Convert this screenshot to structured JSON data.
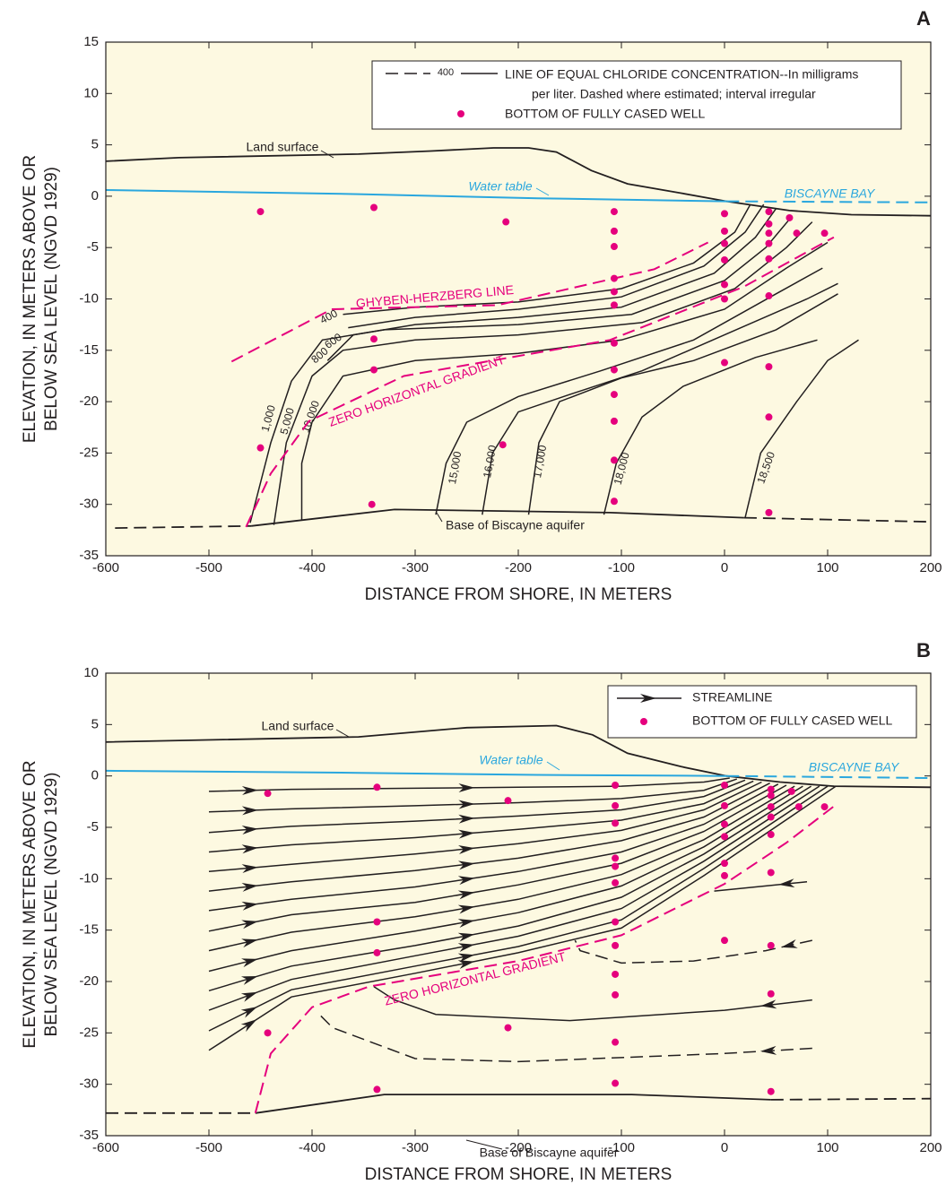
{
  "chart_data": [
    {
      "type": "line",
      "panel": "A",
      "facecolor": "#fdf9e1",
      "xlabel": "DISTANCE FROM SHORE, IN METERS",
      "ylabel": [
        "ELEVATION, IN METERS ABOVE OR",
        "BELOW SEA LEVEL (NGVD 1929)"
      ],
      "xlim": [
        -600,
        200
      ],
      "ylim": [
        -35,
        15
      ],
      "xticks": [
        -600,
        -500,
        -400,
        -300,
        -200,
        -100,
        0,
        100,
        200
      ],
      "yticks": [
        -35,
        -30,
        -25,
        -20,
        -15,
        -10,
        -5,
        0,
        5,
        10,
        15
      ],
      "legend": {
        "sample_level": 400,
        "contour_text": [
          "LINE OF EQUAL CHLORIDE CONCENTRATION--In milligrams",
          "per liter. Dashed where estimated; interval irregular"
        ],
        "well_text": "BOTTOM OF FULLY CASED WELL"
      },
      "series": [
        {
          "name": "Land surface",
          "color": "#231f20",
          "x": [
            -600,
            -529,
            -355,
            -285,
            -224,
            -190,
            -163,
            -129,
            -94,
            -42,
            2,
            63,
            123,
            200
          ],
          "y": [
            3.4,
            3.75,
            4.1,
            4.4,
            4.7,
            4.7,
            4.3,
            2.5,
            1.2,
            0.3,
            -0.5,
            -1.4,
            -1.8,
            -1.9
          ]
        },
        {
          "name": "Water table",
          "color": "#2aa7de",
          "x": [
            -600,
            -355,
            -181,
            2
          ],
          "y": [
            0.6,
            0.2,
            -0.2,
            -0.5
          ]
        },
        {
          "name": "BISCAYNE BAY",
          "color": "#2aa7de",
          "dashed": true,
          "x": [
            2,
            200
          ],
          "y": [
            -0.5,
            -0.6
          ]
        },
        {
          "color": "#231f20",
          "dashed": true,
          "x": [
            -591,
            -459
          ],
          "y": [
            -32.3,
            -32.1
          ]
        },
        {
          "name": "Base of Biscayne aquifer",
          "color": "#231f20",
          "x": [
            -459,
            -320,
            -111,
            19
          ],
          "y": [
            -32.1,
            -30.5,
            -30.8,
            -31.3
          ]
        },
        {
          "color": "#231f20",
          "dashed": true,
          "x": [
            19,
            200
          ],
          "y": [
            -31.3,
            -31.7
          ]
        },
        {
          "name": "GHYBEN-HERZBERG LINE",
          "color": "#e5007d",
          "dashed": true,
          "x": [
            -478,
            -381,
            -220,
            -68,
            -16
          ],
          "y": [
            -16.1,
            -11,
            -10.6,
            -7.1,
            -4.5
          ]
        },
        {
          "name": "ZERO HORIZONTAL GRADIENT",
          "color": "#e5007d",
          "dashed": true,
          "x": [
            -464,
            -440,
            -403,
            -311,
            -111,
            19,
            106
          ],
          "y": [
            -32.2,
            -27,
            -21.9,
            -17.5,
            -14,
            -8.8,
            -4
          ]
        }
      ],
      "contours": [
        {
          "level": 400,
          "x": [
            -370,
            -300,
            -200,
            -100,
            -30,
            10,
            25
          ],
          "y": [
            -11.5,
            -10.8,
            -10.3,
            -9,
            -6.5,
            -3.5,
            -0.8
          ]
        },
        {
          "level": 600,
          "x": [
            -365,
            -300,
            -200,
            -100,
            -20,
            20,
            38
          ],
          "y": [
            -12.8,
            -11.8,
            -11,
            -9.8,
            -6.8,
            -3.5,
            -0.8
          ]
        },
        {
          "level": 800,
          "x": [
            -385,
            -360,
            -300,
            -200,
            -100,
            -10,
            30,
            50
          ],
          "y": [
            -16,
            -13.5,
            -12.5,
            -11.8,
            -10.8,
            -7.5,
            -4,
            -1.2
          ]
        },
        {
          "level": {
            "value": 1000,
            "label": "1,000"
          },
          "x": [
            -460,
            -440,
            -420,
            -390,
            -330,
            -200,
            -90,
            0,
            40,
            65
          ],
          "y": [
            -31.8,
            -24,
            -18,
            -14,
            -13,
            -12.5,
            -11.5,
            -8.2,
            -5,
            -2
          ]
        },
        {
          "level": {
            "value": 5000,
            "label": "5,000"
          },
          "x": [
            -437,
            -425,
            -400,
            -370,
            -300,
            -200,
            -80,
            10,
            60,
            85
          ],
          "y": [
            -32,
            -24,
            -17.5,
            -15,
            -14,
            -13.5,
            -12.3,
            -9,
            -5,
            -2.5
          ]
        },
        {
          "level": {
            "value": 10000,
            "label": "10,000"
          },
          "x": [
            -410,
            -410,
            -400,
            -370,
            -300,
            -200,
            -100,
            0,
            60,
            100
          ],
          "y": [
            -31.5,
            -26,
            -22,
            -17.5,
            -16,
            -15.3,
            -14,
            -11,
            -7,
            -4.5
          ]
        },
        {
          "level": {
            "value": 15000,
            "label": "15,000"
          },
          "x": [
            -280,
            -270,
            -250,
            -200,
            -120,
            -30,
            50,
            95
          ],
          "y": [
            -31,
            -26,
            -22,
            -19.5,
            -17,
            -14,
            -9.5,
            -7
          ]
        },
        {
          "level": {
            "value": 16000,
            "label": "16,000"
          },
          "x": [
            -235,
            -225,
            -200,
            -150,
            -80,
            0,
            80,
            110
          ],
          "y": [
            -31,
            -25,
            -21,
            -19.3,
            -17,
            -13.5,
            -10,
            -8.5
          ]
        },
        {
          "level": {
            "value": 17000,
            "label": "17,000"
          },
          "x": [
            -190,
            -180,
            -160,
            -100,
            -30,
            50,
            110
          ],
          "y": [
            -31,
            -24,
            -20,
            -17.7,
            -16,
            -13,
            -9.5
          ]
        },
        {
          "level": {
            "value": 18000,
            "label": "18,000"
          },
          "x": [
            -117,
            -105,
            -80,
            -40,
            30,
            90
          ],
          "y": [
            -31,
            -26,
            -21.5,
            -18.5,
            -15.7,
            -14
          ]
        },
        {
          "level": {
            "value": 18500,
            "label": "18,500"
          },
          "x": [
            20,
            35,
            70,
            100,
            130
          ],
          "y": [
            -31.3,
            -25,
            -20,
            -16,
            -14
          ]
        }
      ],
      "wells": {
        "color": "#e5007d",
        "x": [
          -450,
          -340,
          -212,
          -107,
          -107,
          -107,
          -107,
          -107,
          -107,
          -107,
          -107,
          -107,
          -107,
          -107,
          -107,
          0,
          0,
          0,
          0,
          0,
          0,
          0,
          43,
          43,
          43,
          43,
          43,
          43,
          43,
          43,
          43,
          63,
          70,
          97,
          -340,
          -340,
          -450,
          -215,
          -342
        ],
        "y": [
          -1.5,
          -1.1,
          -2.5,
          -1.5,
          -3.4,
          -4.9,
          -8,
          -9.3,
          -10.6,
          -14.3,
          -16.9,
          -19.3,
          -21.9,
          -25.7,
          -29.7,
          -1.7,
          -3.4,
          -4.6,
          -6.2,
          -8.6,
          -10,
          -16.2,
          -1.5,
          -2.7,
          -3.6,
          -4.6,
          -6.1,
          -9.7,
          -16.6,
          -21.5,
          -30.8,
          -2.1,
          -3.6,
          -3.6,
          -13.9,
          -16.9,
          -24.5,
          -24.2,
          -30
        ]
      }
    },
    {
      "type": "line",
      "panel": "B",
      "facecolor": "#fdf9e1",
      "xlabel": "DISTANCE FROM SHORE, IN METERS",
      "ylabel": [
        "ELEVATION, IN METERS ABOVE OR",
        "BELOW SEA LEVEL (NGVD 1929)"
      ],
      "xlim": [
        -600,
        200
      ],
      "ylim": [
        -35,
        10
      ],
      "xticks": [
        -600,
        -500,
        -400,
        -300,
        -200,
        -100,
        0,
        100,
        200
      ],
      "yticks": [
        -35,
        -30,
        -25,
        -20,
        -15,
        -10,
        -5,
        0,
        5,
        10
      ],
      "legend": {
        "streamline_text": "STREAMLINE",
        "well_text": "BOTTOM OF FULLY CASED WELL"
      },
      "series": [
        {
          "name": "Land surface",
          "color": "#231f20",
          "x": [
            -600,
            -355,
            -250,
            -163,
            -128,
            -94,
            -42,
            2,
            54,
            106,
            200
          ],
          "y": [
            3.3,
            3.8,
            4.7,
            4.9,
            4,
            2.2,
            0.9,
            0,
            -0.6,
            -1,
            -1.1
          ]
        },
        {
          "name": "Water table",
          "color": "#2aa7de",
          "x": [
            -600,
            -355,
            -181,
            2
          ],
          "y": [
            0.5,
            0.3,
            0.1,
            0
          ]
        },
        {
          "name": "BISCAYNE BAY",
          "color": "#2aa7de",
          "dashed": true,
          "x": [
            2,
            200
          ],
          "y": [
            0,
            -0.2
          ]
        },
        {
          "color": "#231f20",
          "dashed": true,
          "x": [
            -600,
            -455
          ],
          "y": [
            -32.8,
            -32.8
          ]
        },
        {
          "name": "Base of Biscayne aquifer",
          "color": "#231f20",
          "x": [
            -455,
            -330,
            -90,
            45
          ],
          "y": [
            -32.8,
            -31,
            -31,
            -31.5
          ]
        },
        {
          "color": "#231f20",
          "dashed": true,
          "x": [
            45,
            200
          ],
          "y": [
            -31.5,
            -31.4
          ]
        },
        {
          "name": "ZERO HORIZONTAL GRADIENT",
          "color": "#e5007d",
          "dashed": true,
          "x": [
            -455,
            -440,
            -400,
            -345,
            -200,
            -100,
            0,
            60,
            108
          ],
          "y": [
            -32.8,
            -27,
            -22.5,
            -20.5,
            -18,
            -15.5,
            -10.5,
            -6.5,
            -2.8
          ]
        }
      ],
      "streamlines": [
        {
          "x": [
            -500,
            -420,
            -300,
            -200,
            -100,
            -20,
            5
          ],
          "y": [
            -1.5,
            -1.3,
            -1.2,
            -1.1,
            -1,
            -0.6,
            -0.2
          ]
        },
        {
          "x": [
            -500,
            -420,
            -300,
            -200,
            -100,
            -20,
            12
          ],
          "y": [
            -3.5,
            -3.2,
            -2.9,
            -2.6,
            -2.2,
            -1.4,
            -0.3
          ]
        },
        {
          "x": [
            -500,
            -420,
            -300,
            -200,
            -100,
            -20,
            20
          ],
          "y": [
            -5.5,
            -4.9,
            -4.4,
            -3.9,
            -3.3,
            -2,
            -0.4
          ]
        },
        {
          "x": [
            -500,
            -420,
            -300,
            -200,
            -100,
            -20,
            28
          ],
          "y": [
            -7.4,
            -6.7,
            -6,
            -5.2,
            -4.3,
            -2.7,
            -0.5
          ]
        },
        {
          "x": [
            -500,
            -420,
            -300,
            -200,
            -100,
            -20,
            36
          ],
          "y": [
            -9.3,
            -8.6,
            -7.6,
            -6.6,
            -5.3,
            -3.3,
            -0.6
          ]
        },
        {
          "x": [
            -500,
            -420,
            -300,
            -200,
            -100,
            -20,
            44
          ],
          "y": [
            -11.2,
            -10.3,
            -9.2,
            -8,
            -6.3,
            -4,
            -0.7
          ]
        },
        {
          "x": [
            -500,
            -420,
            -300,
            -200,
            -100,
            -20,
            52
          ],
          "y": [
            -13.1,
            -12,
            -10.8,
            -9.3,
            -7.4,
            -4.7,
            -0.8
          ]
        },
        {
          "x": [
            -500,
            -420,
            -300,
            -200,
            -100,
            -20,
            60
          ],
          "y": [
            -15.1,
            -13.5,
            -12.3,
            -10.6,
            -8.5,
            -5.4,
            -0.9
          ]
        },
        {
          "x": [
            -500,
            -420,
            -300,
            -200,
            -100,
            -20,
            68
          ],
          "y": [
            -17,
            -15.2,
            -13.7,
            -12,
            -9.6,
            -6.2,
            -1
          ]
        },
        {
          "x": [
            -500,
            -420,
            -300,
            -200,
            -100,
            -20,
            76
          ],
          "y": [
            -19,
            -17,
            -15.1,
            -13.3,
            -10.7,
            -6.9,
            -1
          ]
        },
        {
          "x": [
            -500,
            -420,
            -300,
            -200,
            -100,
            -20,
            84
          ],
          "y": [
            -20.9,
            -18.5,
            -16.5,
            -14.6,
            -11.8,
            -7.6,
            -1
          ]
        },
        {
          "x": [
            -500,
            -420,
            -300,
            -200,
            -100,
            -20,
            92
          ],
          "y": [
            -22.8,
            -19.8,
            -17.5,
            -15.6,
            -12.9,
            -8.3,
            -1
          ]
        },
        {
          "x": [
            -500,
            -420,
            -300,
            -200,
            -100,
            -20,
            100
          ],
          "y": [
            -24.8,
            -20.8,
            -18.5,
            -16.6,
            -14,
            -9,
            -1
          ]
        },
        {
          "x": [
            -500,
            -420,
            -300,
            -200,
            -100,
            -20,
            108
          ],
          "y": [
            -26.7,
            -21.5,
            -19.2,
            -17.2,
            -14.8,
            -9.7,
            -1
          ]
        }
      ],
      "return_flow": [
        {
          "x": [
            80,
            40,
            -10
          ],
          "y": [
            -10.3,
            -10.7,
            -11.2
          ]
        },
        {
          "dashed": true,
          "x": [
            85,
            40,
            -30,
            -100,
            -140,
            -145
          ],
          "y": [
            -16,
            -17,
            -18,
            -18.2,
            -17,
            -16
          ]
        },
        {
          "x": [
            85,
            0,
            -150,
            -280,
            -320,
            -340
          ],
          "y": [
            -21.8,
            -22.8,
            -23.8,
            -23.2,
            -21.8,
            -20.5
          ]
        },
        {
          "dashed": true,
          "x": [
            85,
            0,
            -200,
            -300,
            -380,
            -395
          ],
          "y": [
            -26.5,
            -27,
            -27.8,
            -27.5,
            -24.5,
            -23
          ]
        }
      ],
      "wells": {
        "color": "#e5007d",
        "x": [
          -443,
          -337,
          -210,
          -106,
          -106,
          -106,
          -106,
          -106,
          -106,
          -106,
          -106,
          -106,
          -106,
          -106,
          -106,
          0,
          0,
          0,
          0,
          0,
          0,
          0,
          45,
          45,
          45,
          45,
          45,
          45,
          45,
          45,
          45,
          65,
          72,
          97,
          -337,
          -337,
          -443,
          -210,
          -337
        ],
        "y": [
          -1.7,
          -1.1,
          -2.4,
          -0.9,
          -2.9,
          -4.6,
          -8,
          -8.8,
          -10.4,
          -14.2,
          -16.5,
          -19.3,
          -21.3,
          -25.9,
          -29.9,
          -0.9,
          -2.9,
          -4.7,
          -5.9,
          -8.5,
          -9.7,
          -16,
          -1.3,
          -1.9,
          -3,
          -4,
          -5.7,
          -9.4,
          -16.5,
          -21.2,
          -30.7,
          -1.5,
          -3,
          -3,
          -14.2,
          -17.2,
          -25,
          -24.5,
          -30.5
        ]
      }
    }
  ]
}
